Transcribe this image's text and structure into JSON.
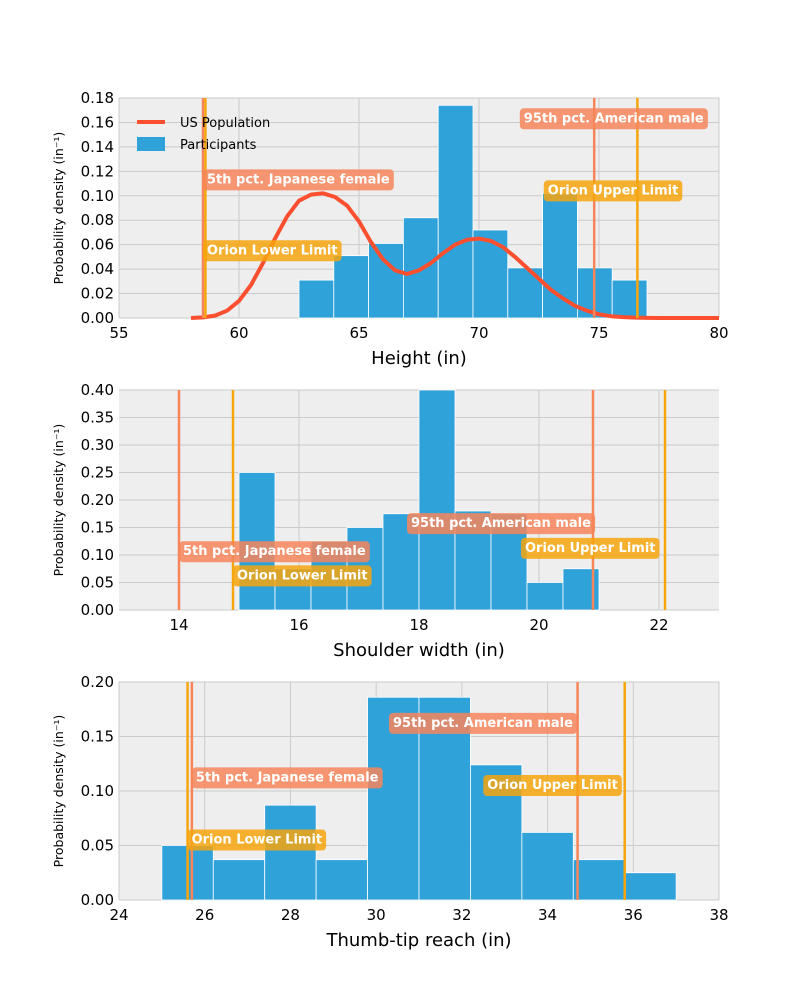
{
  "colors": {
    "background": "#ffffff",
    "plot_background": "#eeeeee",
    "grid": "#cbcbcb",
    "bars": "#30a2da",
    "us_population": "#fc4f30",
    "reference_line": "#f7855a",
    "orion_line": "#f6a50d",
    "reference_box": "#f7855a",
    "orion_box": "#f6a50d"
  },
  "legend": {
    "entries": [
      {
        "label": "US Population",
        "kind": "line",
        "color": "#fc4f30"
      },
      {
        "label": "Participants",
        "kind": "patch",
        "color": "#30a2da"
      }
    ],
    "placement": "upper-left of first panel"
  },
  "chart_data": [
    {
      "type": "bar",
      "xlabel": "Height (in)",
      "ylabel": "Probability density (in⁻¹)",
      "xlim": [
        55,
        80
      ],
      "ylim": [
        0,
        0.18
      ],
      "xticks": [
        "55",
        "60",
        "65",
        "70",
        "75",
        "80"
      ],
      "xtick_values": [
        55,
        60,
        65,
        70,
        75,
        80
      ],
      "yticks": [
        "0.00",
        "0.02",
        "0.04",
        "0.06",
        "0.08",
        "0.10",
        "0.12",
        "0.14",
        "0.16",
        "0.18"
      ],
      "ytick_values": [
        0,
        0.02,
        0.04,
        0.06,
        0.08,
        0.1,
        0.12,
        0.14,
        0.16,
        0.18
      ],
      "grid": true,
      "legend": true,
      "histogram": {
        "name": "Participants",
        "bin_edges": [
          62.5,
          63.95,
          65.4,
          66.85,
          68.3,
          69.75,
          71.2,
          72.65,
          74.1,
          75.55,
          77.0
        ],
        "values": [
          0.031,
          0.051,
          0.061,
          0.082,
          0.174,
          0.072,
          0.041,
          0.102,
          0.041,
          0.031
        ]
      },
      "curve": {
        "name": "US Population",
        "x": [
          58.0,
          58.5,
          59.0,
          59.5,
          60.0,
          60.5,
          61.0,
          61.5,
          62.0,
          62.5,
          63.0,
          63.5,
          64.0,
          64.5,
          65.0,
          65.5,
          66.0,
          66.5,
          67.0,
          67.5,
          68.0,
          68.5,
          69.0,
          69.5,
          70.0,
          70.5,
          71.0,
          71.5,
          72.0,
          72.5,
          73.0,
          73.5,
          74.0,
          74.5,
          75.0,
          75.5,
          76.0,
          76.5,
          77.0,
          77.5,
          78.0,
          79.0,
          80.0
        ],
        "y": [
          0.0,
          0.0005,
          0.002,
          0.006,
          0.014,
          0.027,
          0.045,
          0.065,
          0.083,
          0.096,
          0.101,
          0.102,
          0.099,
          0.092,
          0.079,
          0.062,
          0.048,
          0.039,
          0.036,
          0.039,
          0.045,
          0.053,
          0.06,
          0.064,
          0.065,
          0.063,
          0.058,
          0.05,
          0.041,
          0.032,
          0.023,
          0.016,
          0.01,
          0.006,
          0.003,
          0.0015,
          0.0007,
          0.0003,
          0.0001,
          0.0,
          0.0,
          0.0,
          0.0
        ]
      },
      "vlines": [
        {
          "label": "5th pct. Japanese female",
          "x": 58.5,
          "kind": "reference"
        },
        {
          "label": "Orion Lower Limit",
          "x": 58.6,
          "kind": "orion"
        },
        {
          "label": "95th pct. American male",
          "x": 74.8,
          "kind": "reference"
        },
        {
          "label": "Orion Upper Limit",
          "x": 76.6,
          "kind": "orion"
        }
      ],
      "annotations": [
        {
          "text": "5th pct. Japanese female",
          "x": 58.5,
          "y": 0.113,
          "kind": "reference"
        },
        {
          "text": "Orion Lower Limit",
          "x": 58.5,
          "y": 0.055,
          "kind": "orion"
        },
        {
          "text": "95th pct. American male",
          "x": 71.7,
          "y": 0.163,
          "kind": "reference"
        },
        {
          "text": "Orion Upper Limit",
          "x": 72.7,
          "y": 0.104,
          "kind": "orion"
        }
      ]
    },
    {
      "type": "bar",
      "xlabel": "Shoulder width (in)",
      "ylabel": "Probability density (in⁻¹)",
      "xlim": [
        13,
        23
      ],
      "ylim": [
        0,
        0.4
      ],
      "xticks": [
        "14",
        "16",
        "18",
        "20",
        "22"
      ],
      "xtick_values": [
        14,
        16,
        18,
        20,
        22
      ],
      "yticks": [
        "0.00",
        "0.05",
        "0.10",
        "0.15",
        "0.20",
        "0.25",
        "0.30",
        "0.35",
        "0.40"
      ],
      "ytick_values": [
        0,
        0.05,
        0.1,
        0.15,
        0.2,
        0.25,
        0.3,
        0.35,
        0.4
      ],
      "grid": true,
      "legend": false,
      "histogram": {
        "name": "Participants",
        "bin_edges": [
          15.0,
          15.6,
          16.2,
          16.8,
          17.4,
          18.0,
          18.6,
          19.2,
          19.8,
          20.4,
          21.0
        ],
        "values": [
          0.25,
          0.075,
          0.125,
          0.15,
          0.175,
          0.4,
          0.18,
          0.175,
          0.05,
          0.075
        ]
      },
      "vlines": [
        {
          "label": "5th pct. Japanese female",
          "x": 14.0,
          "kind": "reference"
        },
        {
          "label": "Orion Lower Limit",
          "x": 14.9,
          "kind": "orion"
        },
        {
          "label": "95th pct. American male",
          "x": 20.9,
          "kind": "reference"
        },
        {
          "label": "Orion Upper Limit",
          "x": 22.1,
          "kind": "orion"
        }
      ],
      "annotations": [
        {
          "text": "5th pct. Japanese female",
          "x": 14.0,
          "y": 0.106,
          "kind": "reference"
        },
        {
          "text": "Orion Lower Limit",
          "x": 14.9,
          "y": 0.062,
          "kind": "orion"
        },
        {
          "text": "95th pct. American male",
          "x": 17.8,
          "y": 0.157,
          "kind": "reference"
        },
        {
          "text": "Orion Upper Limit",
          "x": 19.7,
          "y": 0.112,
          "kind": "orion"
        }
      ]
    },
    {
      "type": "bar",
      "xlabel": "Thumb-tip reach (in)",
      "ylabel": "Probability density (in⁻¹)",
      "xlim": [
        24,
        38
      ],
      "ylim": [
        0,
        0.2
      ],
      "xticks": [
        "24",
        "26",
        "28",
        "30",
        "32",
        "34",
        "36",
        "38"
      ],
      "xtick_values": [
        24,
        26,
        28,
        30,
        32,
        34,
        36,
        38
      ],
      "yticks": [
        "0.00",
        "0.05",
        "0.10",
        "0.15",
        "0.20"
      ],
      "ytick_values": [
        0,
        0.05,
        0.1,
        0.15,
        0.2
      ],
      "grid": true,
      "legend": false,
      "histogram": {
        "name": "Participants",
        "bin_edges": [
          25.0,
          26.2,
          27.4,
          28.6,
          29.8,
          31.0,
          32.2,
          33.4,
          34.6,
          35.8,
          37.0
        ],
        "values": [
          0.05,
          0.037,
          0.087,
          0.037,
          0.186,
          0.186,
          0.124,
          0.062,
          0.037,
          0.025
        ]
      },
      "vlines": [
        {
          "label": "5th pct. Japanese female",
          "x": 25.7,
          "kind": "reference"
        },
        {
          "label": "Orion Lower Limit",
          "x": 25.6,
          "kind": "orion"
        },
        {
          "label": "95th pct. American male",
          "x": 34.7,
          "kind": "reference"
        },
        {
          "label": "Orion Upper Limit",
          "x": 35.8,
          "kind": "orion"
        }
      ],
      "annotations": [
        {
          "text": "5th pct. Japanese female",
          "x": 25.7,
          "y": 0.112,
          "kind": "reference"
        },
        {
          "text": "Orion Lower Limit",
          "x": 25.6,
          "y": 0.055,
          "kind": "orion"
        },
        {
          "text": "95th pct. American male",
          "x": 30.3,
          "y": 0.162,
          "kind": "reference"
        },
        {
          "text": "Orion Upper Limit",
          "x": 32.5,
          "y": 0.105,
          "kind": "orion"
        }
      ]
    }
  ]
}
